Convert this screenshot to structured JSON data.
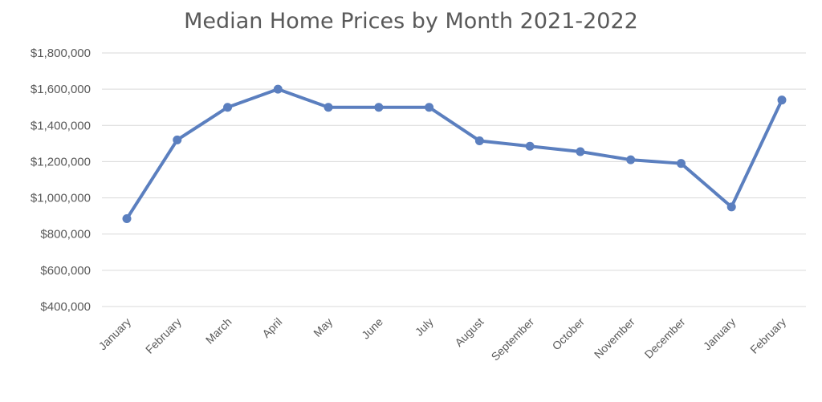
{
  "chart_data": {
    "type": "line",
    "title": "Median Home Prices by Month 2021-2022",
    "xlabel": "",
    "ylabel": "",
    "categories": [
      "January",
      "February",
      "March",
      "April",
      "May",
      "June",
      "July",
      "August",
      "September",
      "October",
      "November",
      "December",
      "January",
      "February"
    ],
    "series": [
      {
        "values": [
          885000,
          1320000,
          1500000,
          1600000,
          1500000,
          1500000,
          1500000,
          1315000,
          1285000,
          1255000,
          1210000,
          1190000,
          950000,
          1540000
        ]
      }
    ],
    "ylim": [
      400000,
      1800000
    ],
    "yticks": [
      400000,
      600000,
      800000,
      1000000,
      1200000,
      1400000,
      1600000,
      1800000
    ],
    "ytick_labels": [
      "$400,000",
      "$600,000",
      "$800,000",
      "$1,000,000",
      "$1,200,000",
      "$1,400,000",
      "$1,600,000",
      "$1,800,000"
    ],
    "grid": true,
    "legend": "none",
    "colors": {
      "series": "#5b7fbf",
      "grid": "#d9d9d9",
      "text": "#595959"
    }
  }
}
